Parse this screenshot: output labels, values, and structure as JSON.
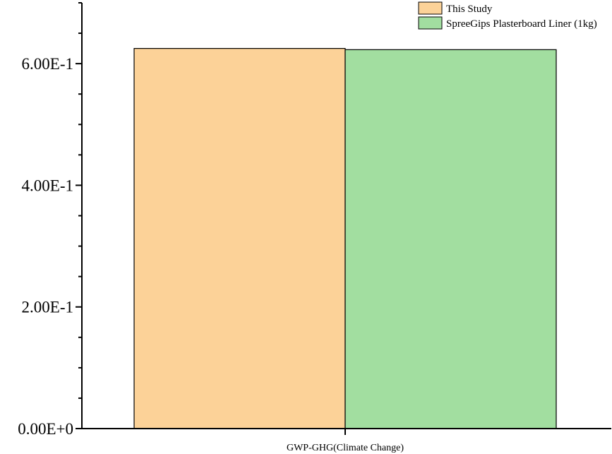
{
  "chart_data": {
    "type": "bar",
    "categories": [
      "GWP-GHG(Climate Change)"
    ],
    "series": [
      {
        "name": "This Study",
        "values": [
          0.625
        ],
        "color": "#FCD298"
      },
      {
        "name": "SpreeGips Plasterboard Liner (1kg)",
        "values": [
          0.623
        ],
        "color": "#A2DEA0"
      }
    ],
    "title": "",
    "xlabel": "",
    "ylabel": "",
    "ylim": [
      0,
      0.7
    ],
    "yticks": [
      {
        "value": 0,
        "label": "0.00E+0"
      },
      {
        "value": 0.2,
        "label": "2.00E-1"
      },
      {
        "value": 0.4,
        "label": "4.00E-1"
      },
      {
        "value": 0.6,
        "label": "6.00E-1"
      }
    ],
    "minor_ytick_step": 0.05,
    "grid": false,
    "legend_position": "top-right"
  }
}
